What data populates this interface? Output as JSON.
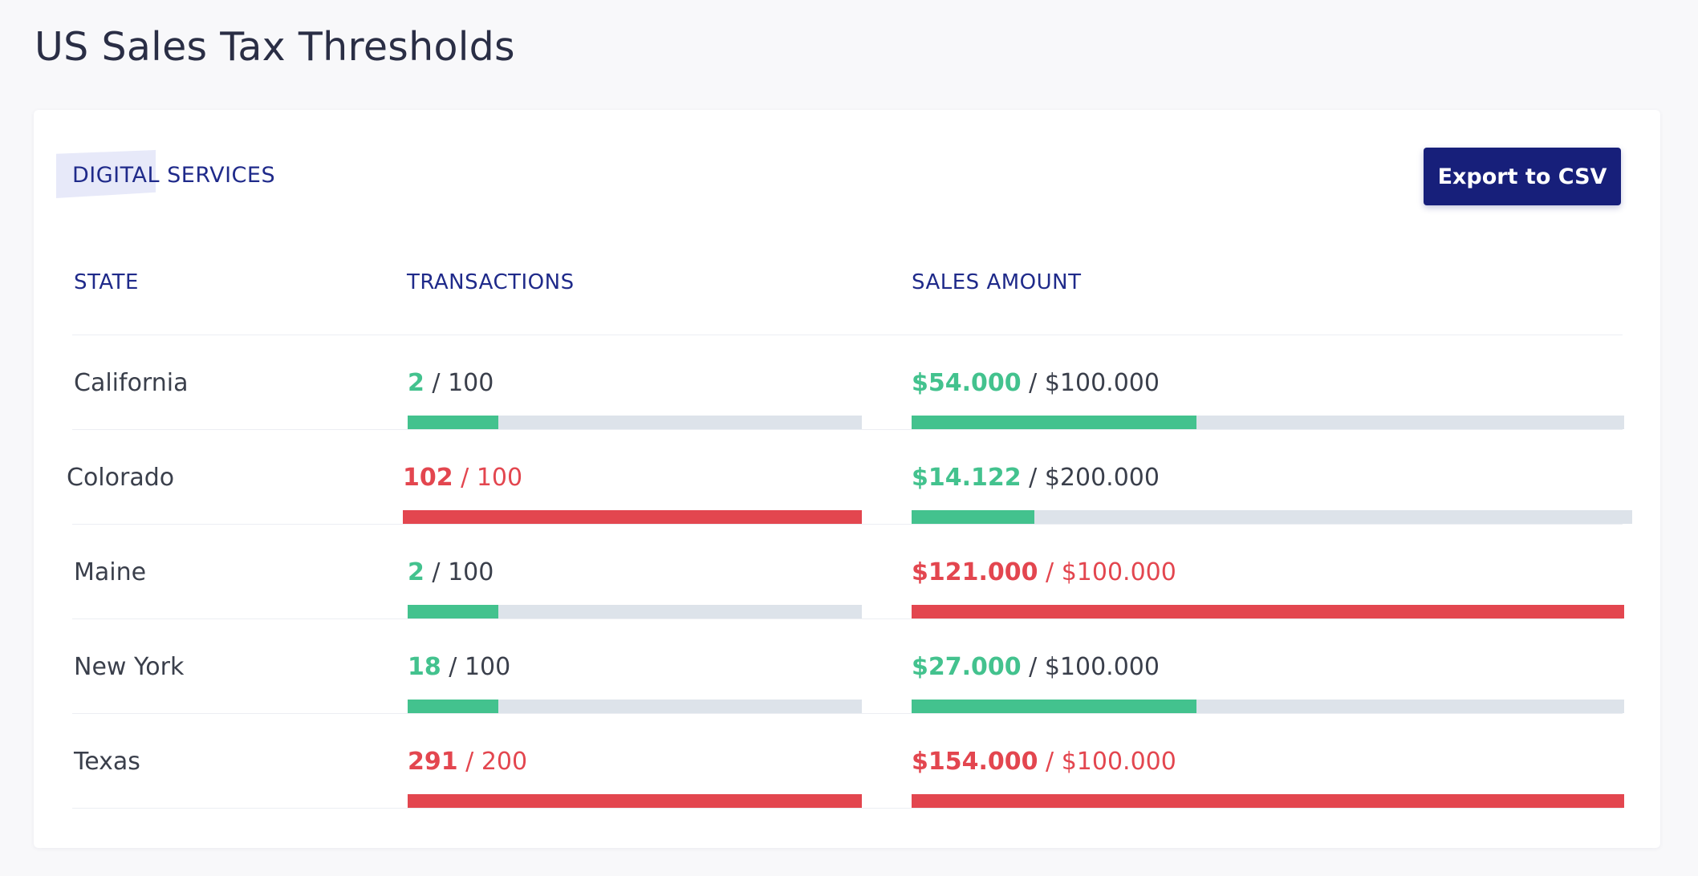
{
  "page": {
    "title": "US Sales Tax Thresholds"
  },
  "card": {
    "section_title": "DIGITAL SERVICES",
    "export_label": "Export to CSV"
  },
  "table": {
    "headers": {
      "state": "STATE",
      "transactions": "TRANSACTIONS",
      "sales": "SALES AMOUNT"
    },
    "rows": [
      {
        "state": "California",
        "tx_value": "2",
        "tx_limit": "100",
        "tx_status": "ok",
        "tx_fill": 0.2,
        "sales_value": "$54.000",
        "sales_limit": "$100.000",
        "sales_status": "ok",
        "sales_fill": 0.4
      },
      {
        "state": "Colorado",
        "tx_value": "102",
        "tx_limit": "100",
        "tx_status": "over",
        "tx_fill": 1.0,
        "sales_value": "$14.122",
        "sales_limit": "$200.000",
        "sales_status": "ok",
        "sales_fill": 0.17
      },
      {
        "state": "Maine",
        "tx_value": "2",
        "tx_limit": "100",
        "tx_status": "ok",
        "tx_fill": 0.2,
        "sales_value": "$121.000",
        "sales_limit": "$100.000",
        "sales_status": "over",
        "sales_fill": 1.0
      },
      {
        "state": "New York",
        "tx_value": "18",
        "tx_limit": "100",
        "tx_status": "ok",
        "tx_fill": 0.2,
        "sales_value": "$27.000",
        "sales_limit": "$100.000",
        "sales_status": "ok",
        "sales_fill": 0.4
      },
      {
        "state": "Texas",
        "tx_value": "291",
        "tx_limit": "200",
        "tx_status": "over",
        "tx_fill": 1.0,
        "sales_value": "$154.000",
        "sales_limit": "$100.000",
        "sales_status": "over",
        "sales_fill": 1.0
      }
    ]
  },
  "colors": {
    "ok": "#43c28e",
    "over": "#e3464f",
    "track": "#dde3ea",
    "accent": "#171f7a"
  }
}
